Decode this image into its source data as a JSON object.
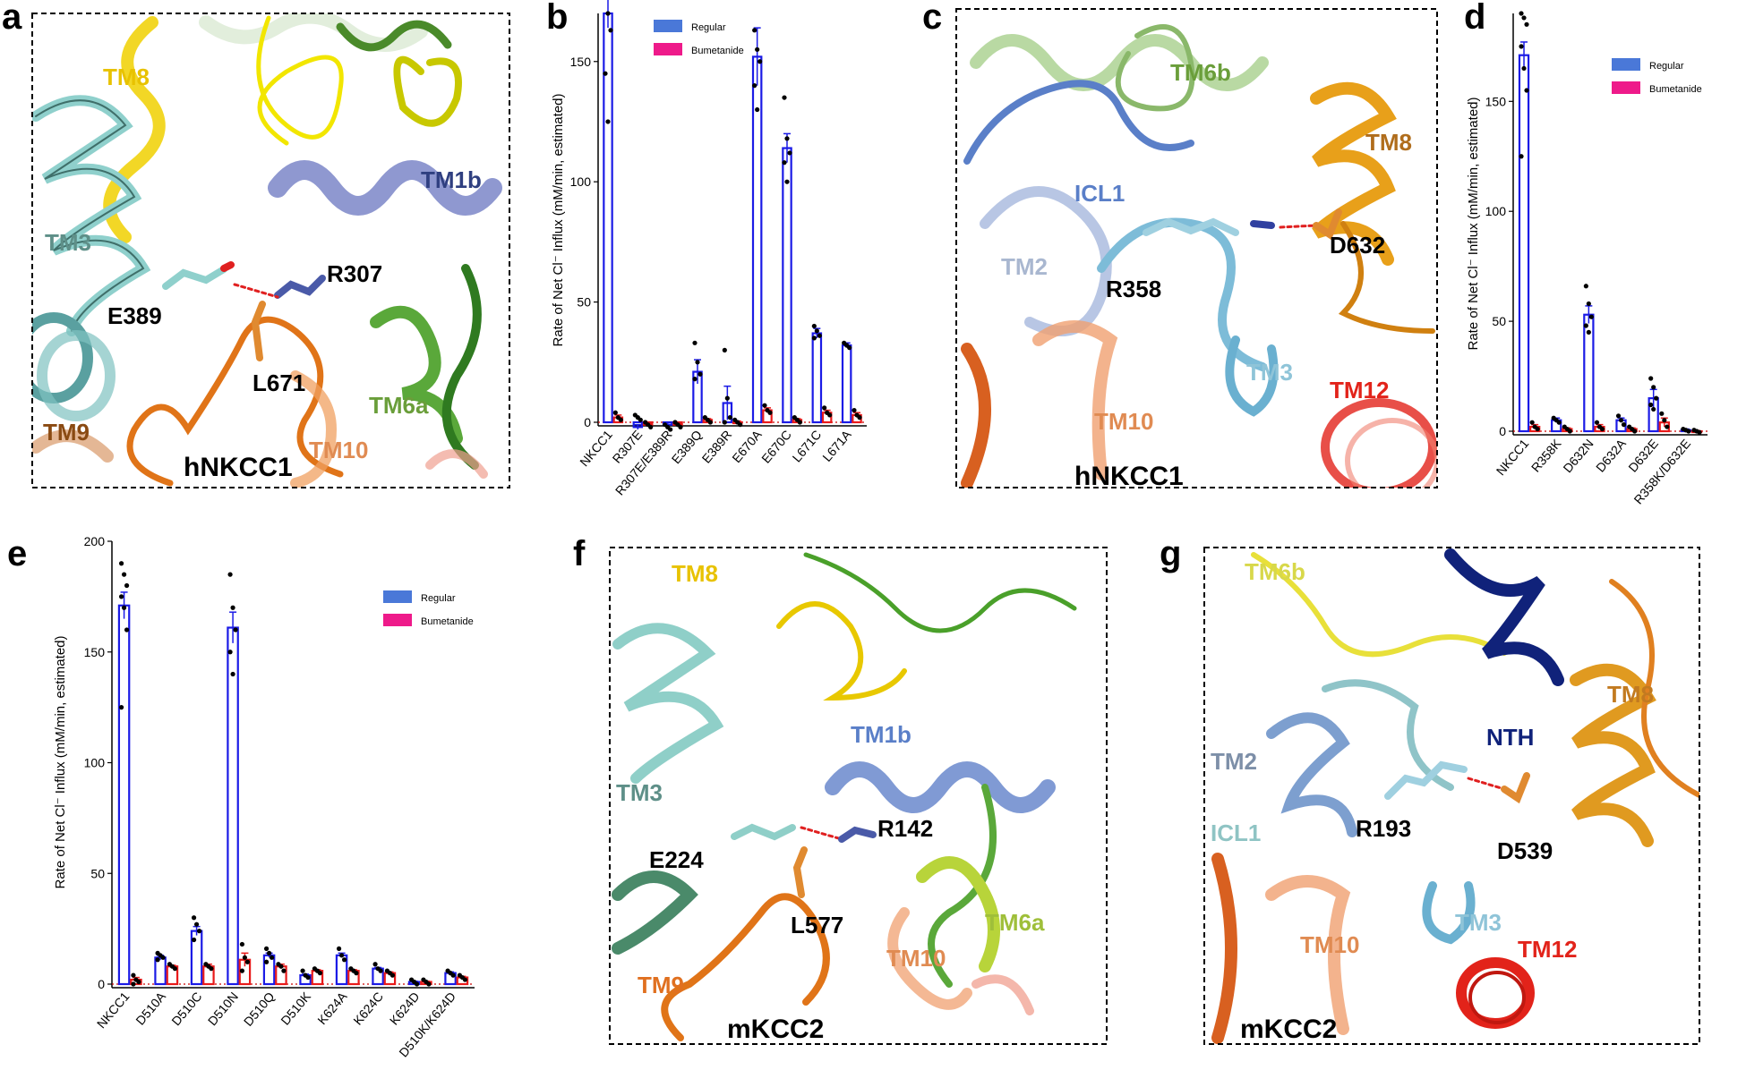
{
  "panels": [
    {
      "id": "a",
      "box": "a",
      "protein": "hNKCC1",
      "labels": [
        {
          "t": "TM8",
          "c": "#e8c200",
          "x": 115,
          "y": 95
        },
        {
          "t": "TM1b",
          "c": "#2f3f80",
          "x": 470,
          "y": 210
        },
        {
          "t": "TM3",
          "c": "#5e8f88",
          "x": 50,
          "y": 280
        },
        {
          "t": "R307",
          "c": "#000",
          "x": 365,
          "y": 315
        },
        {
          "t": "E389",
          "c": "#000",
          "x": 120,
          "y": 362
        },
        {
          "t": "L671",
          "c": "#000",
          "x": 282,
          "y": 437
        },
        {
          "t": "TM6a",
          "c": "#6a9e3a",
          "x": 412,
          "y": 462
        },
        {
          "t": "TM9",
          "c": "#8a4a12",
          "x": 48,
          "y": 492
        },
        {
          "t": "TM10",
          "c": "#e08b52",
          "x": 345,
          "y": 512
        }
      ]
    },
    {
      "id": "c",
      "box": "c",
      "protein": "hNKCC1",
      "labels": [
        {
          "t": "TM6b",
          "c": "#6a9e3a",
          "x": 1307,
          "y": 90
        },
        {
          "t": "TM8",
          "c": "#b06d1c",
          "x": 1525,
          "y": 168
        },
        {
          "t": "ICL1",
          "c": "#5a7fc8",
          "x": 1200,
          "y": 225
        },
        {
          "t": "D632",
          "c": "#000",
          "x": 1485,
          "y": 283
        },
        {
          "t": "TM2",
          "c": "#a9b7d0",
          "x": 1118,
          "y": 307
        },
        {
          "t": "R358",
          "c": "#000",
          "x": 1235,
          "y": 332
        },
        {
          "t": "TM3",
          "c": "#8fc4d8",
          "x": 1392,
          "y": 425
        },
        {
          "t": "TM12",
          "c": "#e2231a",
          "x": 1485,
          "y": 445
        },
        {
          "t": "TM10",
          "c": "#e08b52",
          "x": 1222,
          "y": 480
        }
      ]
    },
    {
      "id": "f",
      "box": "f",
      "protein": "mKCC2",
      "labels": [
        {
          "t": "TM8",
          "c": "#e8c200",
          "x": 750,
          "y": 650
        },
        {
          "t": "TM1b",
          "c": "#5a7fc8",
          "x": 950,
          "y": 830
        },
        {
          "t": "TM3",
          "c": "#5e8f88",
          "x": 688,
          "y": 895
        },
        {
          "t": "R142",
          "c": "#000",
          "x": 980,
          "y": 935
        },
        {
          "t": "E224",
          "c": "#000",
          "x": 725,
          "y": 970
        },
        {
          "t": "L577",
          "c": "#000",
          "x": 883,
          "y": 1043
        },
        {
          "t": "TM6a",
          "c": "#9fbf3a",
          "x": 1100,
          "y": 1040
        },
        {
          "t": "TM10",
          "c": "#e08b52",
          "x": 990,
          "y": 1080
        },
        {
          "t": "TM9",
          "c": "#e07020",
          "x": 712,
          "y": 1110
        }
      ]
    },
    {
      "id": "g",
      "box": "g",
      "protein": "mKCC2",
      "labels": [
        {
          "t": "TM6b",
          "c": "#d8d84a",
          "x": 1390,
          "y": 648
        },
        {
          "t": "NTH",
          "c": "#10227a",
          "x": 1660,
          "y": 833
        },
        {
          "t": "TM8",
          "c": "#c27a20",
          "x": 1795,
          "y": 785
        },
        {
          "t": "TM2",
          "c": "#7d8fa8",
          "x": 1352,
          "y": 860
        },
        {
          "t": "ICL1",
          "c": "#8fc4c4",
          "x": 1352,
          "y": 940
        },
        {
          "t": "R193",
          "c": "#000",
          "x": 1514,
          "y": 935
        },
        {
          "t": "D539",
          "c": "#000",
          "x": 1672,
          "y": 960
        },
        {
          "t": "TM3",
          "c": "#8fc4d8",
          "x": 1625,
          "y": 1040
        },
        {
          "t": "TM10",
          "c": "#e08b52",
          "x": 1452,
          "y": 1065
        },
        {
          "t": "TM12",
          "c": "#e2231a",
          "x": 1695,
          "y": 1070
        }
      ]
    }
  ],
  "chart_data": [
    {
      "id": "b",
      "type": "bar",
      "ylabel": "Rate of Net Cl⁻ Influx (mM/min, estimated)",
      "ylim": [
        0,
        170
      ],
      "yticks": [
        0,
        50,
        100,
        150
      ],
      "categories": [
        "NKCC1",
        "R307E",
        "R307E/E389R",
        "E389Q",
        "E389R",
        "E670A",
        "E670C",
        "L671C",
        "L671A"
      ],
      "series": [
        {
          "name": "Regular",
          "color": "#1b1be6",
          "values": [
            170,
            -2,
            -1,
            21,
            8,
            152,
            114,
            37,
            32
          ],
          "errors": [
            6,
            1,
            1,
            5,
            7,
            12,
            6,
            2,
            1
          ]
        },
        {
          "name": "Bumetanide",
          "color": "#e81a1a",
          "values": [
            2,
            -1,
            -1,
            1,
            0,
            5,
            1,
            4,
            3
          ],
          "errors": [
            1,
            0.5,
            0.5,
            0.5,
            0.5,
            1,
            0.5,
            1,
            1
          ]
        }
      ],
      "points": [
        [
          [
            177,
            170,
            163,
            145,
            125
          ],
          [
            3,
            2,
            1
          ],
          [
            -1,
            -2,
            -3
          ],
          [
            33,
            25,
            20,
            18
          ],
          [
            30,
            10,
            2,
            0
          ],
          [
            163,
            155,
            150,
            140,
            130
          ],
          [
            135,
            118,
            112,
            108,
            100
          ],
          [
            40,
            38,
            36,
            35
          ],
          [
            33,
            32,
            31
          ]
        ],
        [
          [
            4,
            2,
            1
          ],
          [
            0,
            -1,
            -2
          ],
          [
            0,
            -1,
            -2
          ],
          [
            2,
            1,
            0
          ],
          [
            1,
            0,
            -1
          ],
          [
            7,
            5,
            4
          ],
          [
            2,
            1,
            0
          ],
          [
            6,
            4,
            3
          ],
          [
            5,
            3,
            2
          ]
        ]
      ]
    },
    {
      "id": "d",
      "type": "bar",
      "ylabel": "Rate of Net Cl⁻ Influx (mM/min, estimated)",
      "ylim": [
        0,
        190
      ],
      "yticks": [
        0,
        50,
        100,
        150
      ],
      "categories": [
        "NKCC1",
        "R358K",
        "D632N",
        "D632A",
        "D632E",
        "R358K/D632E"
      ],
      "series": [
        {
          "name": "Regular",
          "color": "#1b1be6",
          "values": [
            171,
            5,
            53,
            5,
            15,
            0.5
          ],
          "errors": [
            6,
            1,
            4,
            1,
            4,
            0.5
          ]
        },
        {
          "name": "Bumetanide",
          "color": "#e81a1a",
          "values": [
            2,
            1,
            2,
            1,
            4,
            0
          ],
          "errors": [
            1,
            0.5,
            1,
            0.5,
            2,
            0.3
          ]
        }
      ],
      "points": [
        [
          [
            190,
            188,
            185,
            175,
            165,
            155,
            125
          ],
          [
            6,
            5,
            4
          ],
          [
            66,
            58,
            52,
            48,
            45
          ],
          [
            7,
            5,
            3
          ],
          [
            24,
            20,
            15,
            12,
            10
          ],
          [
            1,
            0.5,
            0
          ]
        ],
        [
          [
            4,
            2,
            1
          ],
          [
            2,
            1,
            0
          ],
          [
            4,
            2,
            1
          ],
          [
            2,
            1,
            0
          ],
          [
            8,
            5,
            2
          ],
          [
            0.5,
            0,
            -0.5
          ]
        ]
      ]
    },
    {
      "id": "e",
      "type": "bar",
      "ylabel": "Rate of Net Cl⁻ Influx (mM/min, estimated)",
      "ylim": [
        0,
        200
      ],
      "yticks": [
        0,
        50,
        100,
        150,
        200
      ],
      "categories": [
        "NKCC1",
        "D510A",
        "D510C",
        "D510N",
        "D510Q",
        "D510K",
        "K624A",
        "K624C",
        "K624D",
        "D510K/K624D"
      ],
      "series": [
        {
          "name": "Regular",
          "color": "#1b1be6",
          "values": [
            171,
            12,
            24,
            161,
            13,
            4,
            13,
            7,
            1,
            5
          ],
          "errors": [
            6,
            1,
            2,
            7,
            1,
            0.5,
            1,
            0.5,
            0.3,
            0.5
          ]
        },
        {
          "name": "Bumetanide",
          "color": "#e81a1a",
          "values": [
            2,
            8,
            8,
            11,
            8,
            6,
            6,
            5,
            1,
            3
          ],
          "errors": [
            1,
            0.5,
            1,
            3,
            1,
            0.5,
            0.5,
            0.5,
            0.3,
            0.5
          ]
        }
      ],
      "points": [
        [
          [
            190,
            185,
            180,
            175,
            170,
            160,
            125
          ],
          [
            14,
            13,
            12,
            11
          ],
          [
            30,
            27,
            24,
            20
          ],
          [
            185,
            170,
            160,
            150,
            140
          ],
          [
            16,
            14,
            12,
            10
          ],
          [
            6,
            4,
            3
          ],
          [
            16,
            13,
            11
          ],
          [
            9,
            7,
            6
          ],
          [
            2,
            1,
            0
          ],
          [
            6,
            5,
            4
          ]
        ],
        [
          [
            4,
            2,
            1,
            0
          ],
          [
            9,
            8,
            7
          ],
          [
            9,
            8,
            7
          ],
          [
            18,
            12,
            10,
            6
          ],
          [
            9,
            8,
            6
          ],
          [
            7,
            6,
            5
          ],
          [
            7,
            6,
            5
          ],
          [
            6,
            5,
            4
          ],
          [
            2,
            1,
            0
          ],
          [
            4,
            3,
            2
          ]
        ]
      ]
    }
  ],
  "panel_letters": [
    "a",
    "b",
    "c",
    "d",
    "e",
    "f",
    "g"
  ]
}
